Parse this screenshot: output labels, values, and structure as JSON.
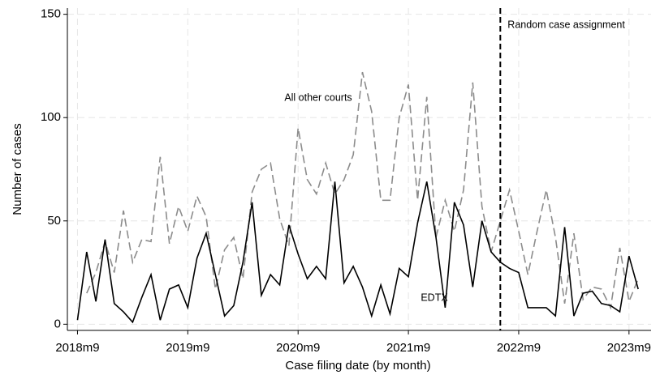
{
  "chart_data": {
    "type": "line",
    "x_label": "Case filing date (by month)",
    "y_label": "Number of cases",
    "x": [
      704,
      705,
      706,
      707,
      708,
      709,
      710,
      711,
      712,
      713,
      714,
      715,
      716,
      717,
      718,
      719,
      720,
      721,
      722,
      723,
      724,
      725,
      726,
      727,
      728,
      729,
      730,
      731,
      732,
      733,
      734,
      735,
      736,
      737,
      738,
      739,
      740,
      741,
      742,
      743,
      744,
      745,
      746,
      747,
      748,
      749,
      750,
      751,
      752,
      753,
      754,
      755,
      756,
      757,
      758,
      759,
      760,
      761,
      762,
      763,
      764,
      765
    ],
    "series": [
      {
        "name": "All other courts",
        "color": "#8c8c8c",
        "dash": true,
        "values": [
          null,
          15,
          25,
          40,
          25,
          55,
          30,
          41,
          40,
          81,
          39,
          57,
          45,
          62,
          52,
          17,
          36,
          42,
          22,
          64,
          75,
          78,
          51,
          38,
          95,
          70,
          63,
          78,
          63,
          70,
          82,
          122,
          103,
          60,
          60,
          100,
          116,
          60,
          110,
          42,
          60,
          45,
          65,
          117,
          57,
          35,
          50,
          65,
          45,
          24,
          45,
          65,
          42,
          10,
          44,
          12,
          18,
          17,
          8,
          37,
          11,
          22
        ]
      },
      {
        "name": "EDTX",
        "color": "#000000",
        "dash": false,
        "values": [
          2,
          35,
          11,
          41,
          10,
          6,
          1,
          13,
          24,
          2,
          17,
          19,
          8,
          32,
          44,
          24,
          4,
          9,
          30,
          59,
          14,
          24,
          19,
          48,
          34,
          22,
          28,
          22,
          69,
          20,
          28,
          18,
          4,
          19,
          5,
          27,
          23,
          49,
          69,
          42,
          8,
          59,
          48,
          18,
          50,
          35,
          30,
          27,
          25,
          8,
          8,
          8,
          4,
          47,
          4,
          15,
          16,
          10,
          9,
          6,
          33,
          17
        ]
      }
    ],
    "vline": {
      "x": 750,
      "label": "Random case assignment"
    },
    "xlim": [
      702.9,
      766.4
    ],
    "ylim": [
      -3,
      153
    ],
    "xticks": [
      {
        "value": 704,
        "label": "2018m9"
      },
      {
        "value": 716,
        "label": "2019m9"
      },
      {
        "value": 728,
        "label": "2020m9"
      },
      {
        "value": 740,
        "label": "2021m9"
      },
      {
        "value": 752,
        "label": "2022m9"
      },
      {
        "value": 764,
        "label": "2023m9"
      }
    ],
    "yticks": [
      0,
      50,
      100,
      150
    ],
    "grid": true
  }
}
